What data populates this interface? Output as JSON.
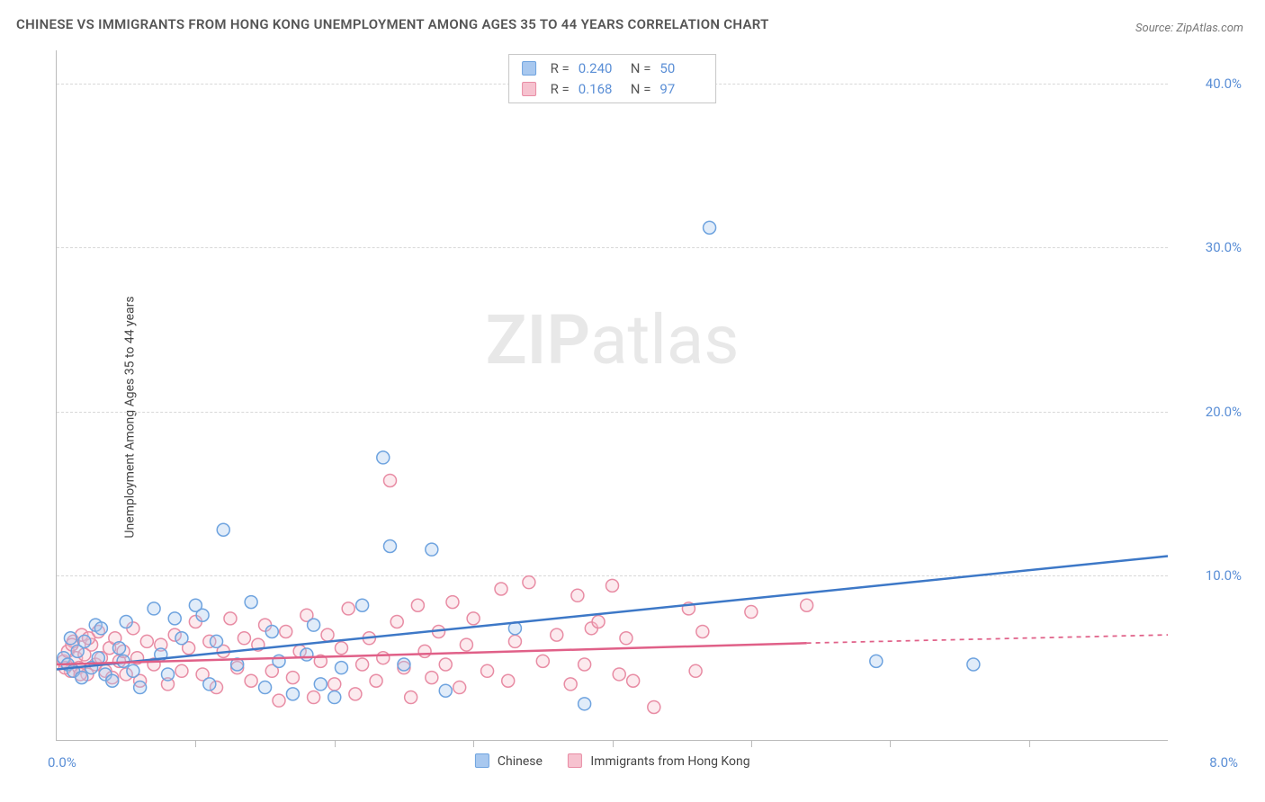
{
  "title": "CHINESE VS IMMIGRANTS FROM HONG KONG UNEMPLOYMENT AMONG AGES 35 TO 44 YEARS CORRELATION CHART",
  "source": "Source: ZipAtlas.com",
  "watermark_bold": "ZIP",
  "watermark_light": "atlas",
  "y_axis_label": "Unemployment Among Ages 35 to 44 years",
  "chart": {
    "type": "scatter",
    "xlim": [
      0,
      8
    ],
    "ylim": [
      0,
      42
    ],
    "x_origin_label": "0.0%",
    "x_max_label": "8.0%",
    "y_ticks": [
      10,
      20,
      30,
      40
    ],
    "y_tick_labels": [
      "10.0%",
      "20.0%",
      "30.0%",
      "40.0%"
    ],
    "x_ticks": [
      1,
      2,
      3,
      4,
      5,
      6,
      7
    ],
    "background_color": "#ffffff",
    "grid_color": "#d8d8d8",
    "axis_color": "#bbbbbb",
    "tick_label_color": "#5b8fd6",
    "tick_label_fontsize": 15,
    "marker_radius": 7,
    "marker_stroke_width": 1.5,
    "marker_fill_opacity": 0.35,
    "trend_line_width": 2.5,
    "series": [
      {
        "id": "chinese",
        "label": "Chinese",
        "color_fill": "#a8c8ef",
        "color_stroke": "#6ea3df",
        "line_color": "#3d78c7",
        "R": "0.240",
        "N": "50",
        "trend": {
          "x1": 0,
          "y1": 4.3,
          "x2": 8,
          "y2": 11.2,
          "dash_after_x": 8
        },
        "points": [
          [
            0.05,
            5.0
          ],
          [
            0.08,
            4.6
          ],
          [
            0.1,
            6.2
          ],
          [
            0.12,
            4.2
          ],
          [
            0.15,
            5.4
          ],
          [
            0.18,
            3.8
          ],
          [
            0.2,
            6.0
          ],
          [
            0.25,
            4.4
          ],
          [
            0.28,
            7.0
          ],
          [
            0.3,
            5.0
          ],
          [
            0.35,
            4.0
          ],
          [
            0.4,
            3.6
          ],
          [
            0.45,
            5.6
          ],
          [
            0.5,
            7.2
          ],
          [
            0.55,
            4.2
          ],
          [
            0.6,
            3.2
          ],
          [
            0.7,
            8.0
          ],
          [
            0.75,
            5.2
          ],
          [
            0.8,
            4.0
          ],
          [
            0.85,
            7.4
          ],
          [
            0.9,
            6.2
          ],
          [
            1.0,
            8.2
          ],
          [
            1.05,
            7.6
          ],
          [
            1.1,
            3.4
          ],
          [
            1.15,
            6.0
          ],
          [
            1.2,
            12.8
          ],
          [
            1.3,
            4.6
          ],
          [
            1.4,
            8.4
          ],
          [
            1.5,
            3.2
          ],
          [
            1.55,
            6.6
          ],
          [
            1.6,
            4.8
          ],
          [
            1.7,
            2.8
          ],
          [
            1.8,
            5.2
          ],
          [
            1.85,
            7.0
          ],
          [
            1.9,
            3.4
          ],
          [
            2.0,
            2.6
          ],
          [
            2.05,
            4.4
          ],
          [
            2.2,
            8.2
          ],
          [
            2.35,
            17.2
          ],
          [
            2.4,
            11.8
          ],
          [
            2.5,
            4.6
          ],
          [
            2.7,
            11.6
          ],
          [
            2.8,
            3.0
          ],
          [
            3.3,
            6.8
          ],
          [
            3.8,
            2.2
          ],
          [
            4.7,
            31.2
          ],
          [
            5.9,
            4.8
          ],
          [
            6.6,
            4.6
          ],
          [
            0.32,
            6.8
          ],
          [
            0.48,
            4.8
          ]
        ]
      },
      {
        "id": "hongkong",
        "label": "Immigrants from Hong Kong",
        "color_fill": "#f6c2cf",
        "color_stroke": "#e88ca4",
        "line_color": "#e06088",
        "R": "0.168",
        "N": "97",
        "trend": {
          "x1": 0,
          "y1": 4.6,
          "x2": 5.4,
          "y2": 5.9,
          "dash_after_x": 5.4,
          "x3": 8,
          "y3": 6.4
        },
        "points": [
          [
            0.05,
            4.8
          ],
          [
            0.08,
            5.4
          ],
          [
            0.1,
            4.2
          ],
          [
            0.12,
            6.0
          ],
          [
            0.14,
            5.0
          ],
          [
            0.16,
            4.4
          ],
          [
            0.18,
            6.4
          ],
          [
            0.2,
            5.2
          ],
          [
            0.22,
            4.0
          ],
          [
            0.25,
            5.8
          ],
          [
            0.28,
            4.6
          ],
          [
            0.3,
            6.6
          ],
          [
            0.32,
            5.0
          ],
          [
            0.35,
            4.2
          ],
          [
            0.38,
            5.6
          ],
          [
            0.4,
            3.8
          ],
          [
            0.42,
            6.2
          ],
          [
            0.45,
            4.8
          ],
          [
            0.48,
            5.4
          ],
          [
            0.5,
            4.0
          ],
          [
            0.55,
            6.8
          ],
          [
            0.58,
            5.0
          ],
          [
            0.6,
            3.6
          ],
          [
            0.65,
            6.0
          ],
          [
            0.7,
            4.6
          ],
          [
            0.75,
            5.8
          ],
          [
            0.8,
            3.4
          ],
          [
            0.85,
            6.4
          ],
          [
            0.9,
            4.2
          ],
          [
            0.95,
            5.6
          ],
          [
            1.0,
            7.2
          ],
          [
            1.05,
            4.0
          ],
          [
            1.1,
            6.0
          ],
          [
            1.15,
            3.2
          ],
          [
            1.2,
            5.4
          ],
          [
            1.25,
            7.4
          ],
          [
            1.3,
            4.4
          ],
          [
            1.35,
            6.2
          ],
          [
            1.4,
            3.6
          ],
          [
            1.45,
            5.8
          ],
          [
            1.5,
            7.0
          ],
          [
            1.55,
            4.2
          ],
          [
            1.6,
            2.4
          ],
          [
            1.65,
            6.6
          ],
          [
            1.7,
            3.8
          ],
          [
            1.75,
            5.4
          ],
          [
            1.8,
            7.6
          ],
          [
            1.85,
            2.6
          ],
          [
            1.9,
            4.8
          ],
          [
            1.95,
            6.4
          ],
          [
            2.0,
            3.4
          ],
          [
            2.05,
            5.6
          ],
          [
            2.1,
            8.0
          ],
          [
            2.15,
            2.8
          ],
          [
            2.2,
            4.6
          ],
          [
            2.25,
            6.2
          ],
          [
            2.3,
            3.6
          ],
          [
            2.35,
            5.0
          ],
          [
            2.4,
            15.8
          ],
          [
            2.45,
            7.2
          ],
          [
            2.5,
            4.4
          ],
          [
            2.55,
            2.6
          ],
          [
            2.6,
            8.2
          ],
          [
            2.65,
            5.4
          ],
          [
            2.7,
            3.8
          ],
          [
            2.75,
            6.6
          ],
          [
            2.8,
            4.6
          ],
          [
            2.85,
            8.4
          ],
          [
            2.9,
            3.2
          ],
          [
            2.95,
            5.8
          ],
          [
            3.0,
            7.4
          ],
          [
            3.1,
            4.2
          ],
          [
            3.2,
            9.2
          ],
          [
            3.25,
            3.6
          ],
          [
            3.3,
            6.0
          ],
          [
            3.4,
            9.6
          ],
          [
            3.5,
            4.8
          ],
          [
            3.6,
            6.4
          ],
          [
            3.7,
            3.4
          ],
          [
            3.75,
            8.8
          ],
          [
            3.8,
            4.6
          ],
          [
            3.85,
            6.8
          ],
          [
            3.9,
            7.2
          ],
          [
            4.0,
            9.4
          ],
          [
            4.05,
            4.0
          ],
          [
            4.1,
            6.2
          ],
          [
            4.15,
            3.6
          ],
          [
            4.3,
            2.0
          ],
          [
            4.55,
            8.0
          ],
          [
            4.6,
            4.2
          ],
          [
            4.65,
            6.6
          ],
          [
            5.0,
            7.8
          ],
          [
            5.4,
            8.2
          ],
          [
            0.06,
            4.4
          ],
          [
            0.11,
            5.8
          ],
          [
            0.17,
            4.0
          ],
          [
            0.23,
            6.2
          ]
        ]
      }
    ]
  },
  "bottom_legend_label_prefix": "",
  "stats_labels": {
    "R": "R =",
    "N": "N ="
  }
}
